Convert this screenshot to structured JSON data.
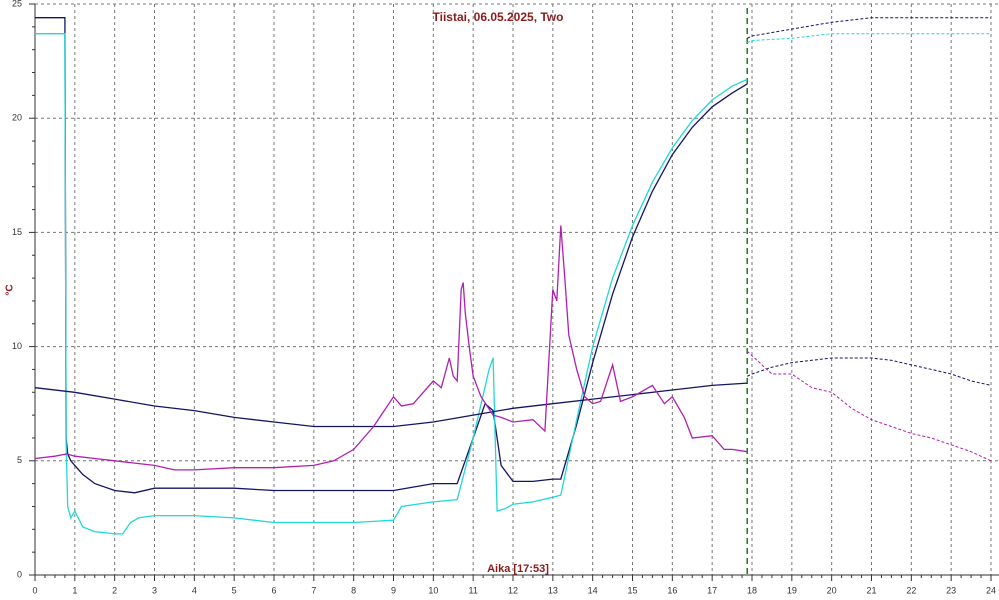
{
  "chart_data": {
    "type": "line",
    "title": "Tiistai, 06.05.2025, Two",
    "y_label": "°C",
    "x_label": "Aika [17:53]",
    "now_line": 17.88,
    "xlim": [
      0,
      24
    ],
    "ylim": [
      0,
      25
    ],
    "xticks": [
      0,
      1,
      2,
      3,
      4,
      5,
      6,
      7,
      8,
      9,
      10,
      11,
      12,
      13,
      14,
      15,
      16,
      17,
      18,
      19,
      20,
      21,
      22,
      23,
      24
    ],
    "yticks": [
      0,
      5,
      10,
      15,
      20,
      25
    ],
    "grid": true,
    "series": [
      {
        "color": "#141464",
        "dashed": false,
        "x": [
          0,
          0.75,
          0.78,
          0.82,
          0.9,
          1.0,
          1.2,
          1.5,
          2,
          2.5,
          3,
          4,
          5,
          6,
          7,
          8,
          9,
          10,
          10.6,
          11.0,
          11.3,
          11.5,
          11.7,
          12,
          12.5,
          13,
          13.2,
          13.6,
          14,
          14.5,
          15,
          15.5,
          16,
          16.5,
          17,
          17.5,
          17.88
        ],
        "values": [
          24.4,
          24.4,
          6,
          5.3,
          5,
          4.8,
          4.4,
          4.0,
          3.7,
          3.6,
          3.8,
          3.8,
          3.8,
          3.7,
          3.7,
          3.7,
          3.7,
          4.0,
          4.0,
          6.0,
          7.5,
          7.2,
          4.8,
          4.1,
          4.1,
          4.2,
          4.2,
          6.6,
          9.3,
          12.3,
          14.8,
          16.8,
          18.4,
          19.6,
          20.5,
          21.1,
          21.5
        ]
      },
      {
        "color": "#20d8d8",
        "dashed": false,
        "x": [
          0,
          0.75,
          0.78,
          0.82,
          0.9,
          1.0,
          1.2,
          1.5,
          2,
          2.2,
          2.4,
          2.6,
          3,
          4,
          5,
          6,
          7,
          8,
          9,
          9.2,
          10,
          10.6,
          11.0,
          11.4,
          11.5,
          11.6,
          11.8,
          12,
          12.5,
          13,
          13.2,
          13.6,
          14,
          14.5,
          15,
          15.5,
          16,
          16.5,
          17,
          17.5,
          17.88
        ],
        "values": [
          23.7,
          23.7,
          5.8,
          3.0,
          2.5,
          2.8,
          2.1,
          1.9,
          1.8,
          1.8,
          2.3,
          2.5,
          2.6,
          2.6,
          2.5,
          2.3,
          2.3,
          2.3,
          2.4,
          3.0,
          3.2,
          3.3,
          6.0,
          9.0,
          9.5,
          2.8,
          2.9,
          3.1,
          3.2,
          3.4,
          3.5,
          6.8,
          10.0,
          13.0,
          15.3,
          17.2,
          18.7,
          19.9,
          20.8,
          21.4,
          21.7
        ]
      },
      {
        "color": "#141464",
        "dashed": false,
        "x": [
          0,
          1,
          2,
          3,
          4,
          5,
          6,
          7,
          8,
          9,
          10,
          11,
          12,
          13,
          14,
          15,
          16,
          17,
          17.88
        ],
        "values": [
          8.2,
          8.0,
          7.7,
          7.4,
          7.2,
          6.9,
          6.7,
          6.5,
          6.5,
          6.5,
          6.7,
          7.0,
          7.3,
          7.5,
          7.7,
          7.9,
          8.1,
          8.3,
          8.4
        ]
      },
      {
        "color": "#b020b0",
        "dashed": false,
        "x": [
          0,
          0.5,
          0.8,
          1,
          1.5,
          2,
          2.5,
          3,
          3.5,
          4,
          5,
          6,
          7,
          7.5,
          8,
          8.5,
          9,
          9.2,
          9.5,
          10,
          10.2,
          10.4,
          10.5,
          10.6,
          10.7,
          10.75,
          10.8,
          10.9,
          11,
          11.2,
          11.5,
          11.7,
          12,
          12.5,
          12.8,
          13,
          13.1,
          13.2,
          13.3,
          13.4,
          13.6,
          13.8,
          14,
          14.2,
          14.5,
          14.7,
          15,
          15.5,
          15.8,
          16,
          16.3,
          16.5,
          17,
          17.3,
          17.5,
          17.88
        ],
        "values": [
          5.1,
          5.2,
          5.3,
          5.2,
          5.1,
          5.0,
          4.9,
          4.8,
          4.6,
          4.6,
          4.7,
          4.7,
          4.8,
          5.0,
          5.5,
          6.5,
          7.8,
          7.4,
          7.5,
          8.5,
          8.2,
          9.5,
          8.7,
          8.5,
          12.5,
          12.8,
          11.5,
          10.0,
          8.7,
          7.8,
          7.0,
          6.9,
          6.7,
          6.8,
          6.3,
          12.5,
          12.0,
          15.3,
          13.0,
          10.5,
          9.0,
          7.8,
          7.5,
          7.6,
          9.2,
          7.6,
          7.8,
          8.3,
          7.5,
          7.8,
          6.9,
          6.0,
          6.1,
          5.5,
          5.5,
          5.4
        ]
      },
      {
        "color": "#141464",
        "dashed": true,
        "x": [
          17.88,
          18,
          19,
          20,
          21,
          22,
          23,
          24
        ],
        "values": [
          23.5,
          23.6,
          23.9,
          24.2,
          24.4,
          24.4,
          24.4,
          24.4
        ]
      },
      {
        "color": "#20d8d8",
        "dashed": true,
        "x": [
          17.88,
          18,
          19,
          20,
          21,
          22,
          23,
          24
        ],
        "values": [
          23.3,
          23.4,
          23.5,
          23.7,
          23.7,
          23.7,
          23.7,
          23.7
        ]
      },
      {
        "color": "#141464",
        "dashed": true,
        "x": [
          17.88,
          18,
          18.5,
          19,
          19.5,
          20,
          20.5,
          21,
          21.5,
          22,
          22.5,
          23,
          23.5,
          24
        ],
        "values": [
          8.7,
          8.8,
          9.1,
          9.3,
          9.4,
          9.5,
          9.5,
          9.5,
          9.4,
          9.2,
          9.0,
          8.8,
          8.5,
          8.3
        ]
      },
      {
        "color": "#b020b0",
        "dashed": true,
        "x": [
          17.88,
          18,
          18.5,
          19,
          19.5,
          20,
          20.5,
          21,
          21.5,
          22,
          22.5,
          23,
          23.5,
          24
        ],
        "values": [
          9.8,
          9.6,
          8.8,
          8.8,
          8.2,
          8.0,
          7.3,
          6.8,
          6.5,
          6.2,
          6.0,
          5.7,
          5.4,
          5.0
        ]
      }
    ]
  }
}
